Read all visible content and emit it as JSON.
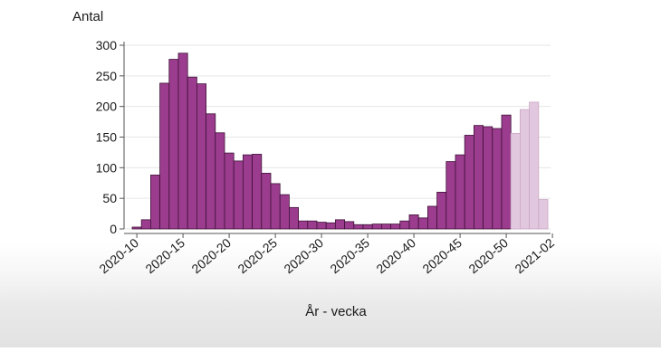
{
  "chart_data": {
    "type": "bar",
    "title": "",
    "ylabel": "Antal",
    "xlabel": "År - vecka",
    "ylim": [
      0,
      300
    ],
    "yticks": [
      0,
      50,
      100,
      150,
      200,
      250,
      300
    ],
    "grid": true,
    "x_tick_labels": [
      "2020-10",
      "2020-15",
      "2020-20",
      "2020-25",
      "2020-30",
      "2020-35",
      "2020-40",
      "2020-45",
      "2020-50",
      "2021-02"
    ],
    "categories": [
      "2020-10",
      "2020-11",
      "2020-12",
      "2020-13",
      "2020-14",
      "2020-15",
      "2020-16",
      "2020-17",
      "2020-18",
      "2020-19",
      "2020-20",
      "2020-21",
      "2020-22",
      "2020-23",
      "2020-24",
      "2020-25",
      "2020-26",
      "2020-27",
      "2020-28",
      "2020-29",
      "2020-30",
      "2020-31",
      "2020-32",
      "2020-33",
      "2020-34",
      "2020-35",
      "2020-36",
      "2020-37",
      "2020-38",
      "2020-39",
      "2020-40",
      "2020-41",
      "2020-42",
      "2020-43",
      "2020-44",
      "2020-45",
      "2020-46",
      "2020-47",
      "2020-48",
      "2020-49",
      "2020-50",
      "2020-51",
      "2020-52",
      "2020-53",
      "2021-01"
    ],
    "values": [
      3,
      15,
      88,
      238,
      277,
      287,
      248,
      237,
      188,
      157,
      124,
      111,
      121,
      122,
      91,
      74,
      56,
      35,
      13,
      13,
      11,
      10,
      15,
      12,
      7,
      7,
      8,
      8,
      8,
      13,
      23,
      18,
      37,
      60,
      110,
      121,
      153,
      169,
      167,
      164,
      186,
      156,
      195,
      207,
      48
    ],
    "preliminary_from_index": 41,
    "colors": {
      "bar_fill": "#9b3c8e",
      "bar_stroke": "#3f1238",
      "bar_fill_preliminary": "#e2c8df",
      "bar_stroke_preliminary": "#c9a6c4",
      "grid": "#e6e6e6",
      "axis": "#555555",
      "text": "#1a1a1a"
    }
  }
}
